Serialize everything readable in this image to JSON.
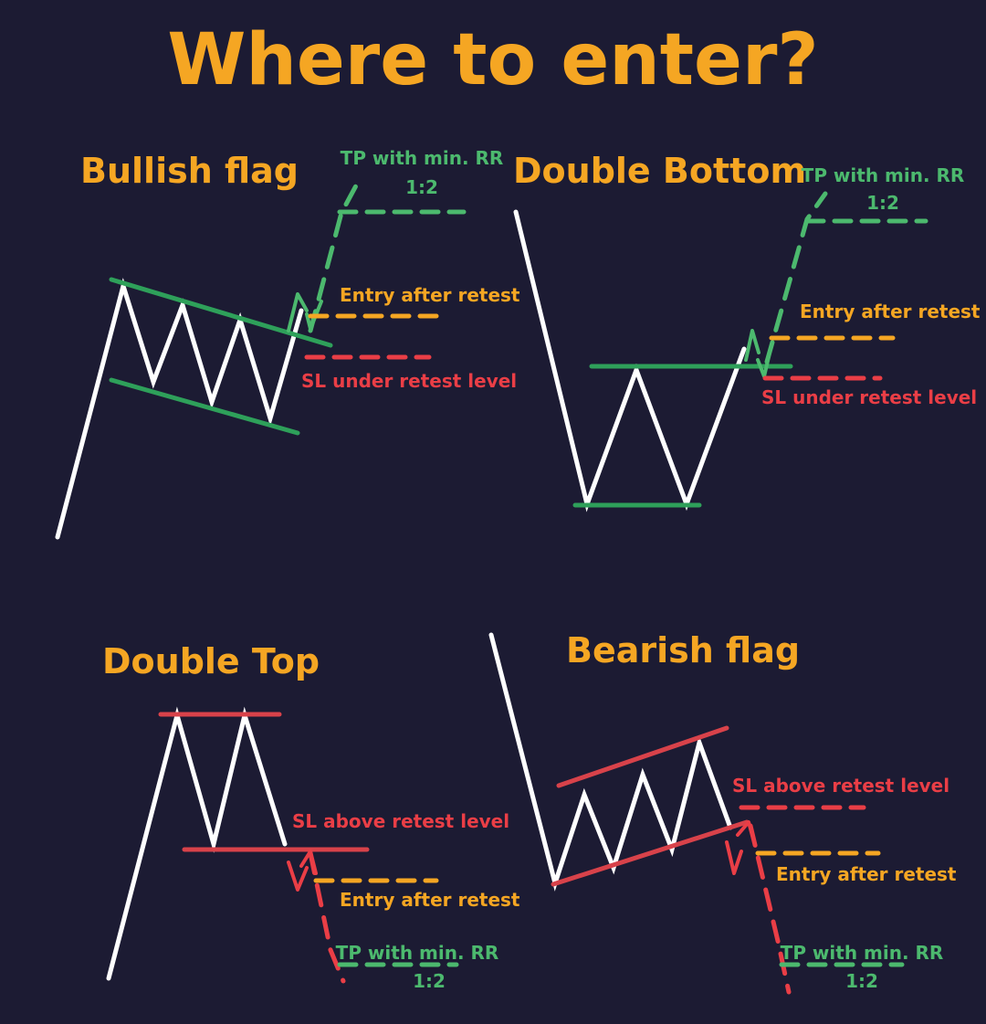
{
  "title": "Where to enter?",
  "colors": {
    "background": "#1c1b33",
    "title": "#f5a623",
    "price_line": "#ffffff",
    "bullish_level": "#2ea05a",
    "bearish_level": "#d8424a",
    "take_profit": "#4cb96e",
    "entry": "#f5a623",
    "stop_loss": "#ea3e46"
  },
  "patterns": {
    "bullish_flag": {
      "title": "Bullish flag",
      "tp_label": "TP with min. RR",
      "tp_ratio": "1:2",
      "entry_label": "Entry after retest",
      "sl_label": "SL under retest level"
    },
    "double_bottom": {
      "title": "Double Bottom",
      "tp_label": "TP with min. RR",
      "tp_ratio": "1:2",
      "entry_label": "Entry after retest",
      "sl_label": "SL under retest level"
    },
    "double_top": {
      "title": "Double Top",
      "sl_label": "SL above retest level",
      "entry_label": "Entry after retest",
      "tp_label": "TP with min. RR",
      "tp_ratio": "1:2"
    },
    "bearish_flag": {
      "title": "Bearish flag",
      "sl_label": "SL above retest level",
      "entry_label": "Entry after retest",
      "tp_label": "TP with min. RR",
      "tp_ratio": "1:2"
    }
  }
}
